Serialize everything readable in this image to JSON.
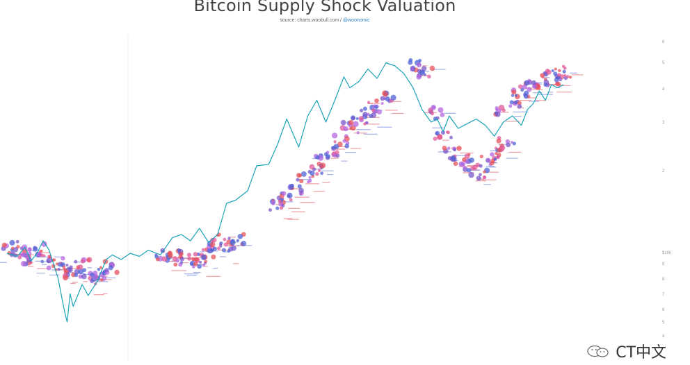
{
  "header": {
    "title": "Bitcoin Supply Shock Valuation",
    "source_prefix": "source: charts.woobull.com / ",
    "source_handle": "@woonomic"
  },
  "watermark": {
    "text": "CT中文",
    "icon": "wechat-icon"
  },
  "colors": {
    "price_line": "#1aa3b8",
    "dot_purple": "#7a57c9",
    "dot_pink": "#e05a9a",
    "dot_red": "#e8525a",
    "dot_violet": "#b366e0",
    "dot_blue": "#4f63d6",
    "text_red": "#e0505a",
    "text_blue": "#5a6fd8"
  },
  "chart_data": {
    "type": "line",
    "title": "Bitcoin Supply Shock Valuation",
    "xlabel": "",
    "ylabel": "",
    "y_scale": "log",
    "y_tick_labels": [
      "6",
      "5",
      "4",
      "3",
      "2",
      "$10k",
      "9",
      "8",
      "7",
      "6",
      "5",
      "4"
    ],
    "x_tick_labels": [],
    "grid": false,
    "legend": "none",
    "x_range": [
      0,
      100
    ],
    "y_range": [
      0,
      100
    ],
    "series": [
      {
        "kind": "line",
        "x": [
          0.0,
          1.7,
          3.0,
          4.0,
          5.0,
          6.0,
          7.0,
          8.5,
          9.5,
          10.0,
          10.5,
          11.0,
          12.5,
          13.5,
          15.0,
          16.5,
          17.5,
          19.0,
          20.5,
          22.0,
          23.5,
          25.5,
          27.5,
          29.0,
          30.5,
          32.0,
          33.5,
          35.0,
          36.5,
          38.0,
          40.0,
          41.5,
          43.5,
          45.0,
          46.5,
          48.5,
          50.0,
          51.5,
          53.0,
          54.5,
          56.0,
          57.0,
          58.5,
          60.0,
          61.5,
          63.0,
          64.5,
          66.0,
          67.5,
          69.0,
          70.5,
          71.5,
          72.5,
          73.5,
          75.0,
          76.5,
          78.0,
          79.5,
          81.0,
          82.5,
          84.0,
          85.5,
          86.5,
          87.5,
          88.5,
          89.5,
          90.5,
          91.5,
          92.5
        ],
        "y": [
          70.0,
          71.0,
          68.0,
          72.5,
          70.0,
          66.0,
          69.0,
          78.0,
          88.0,
          92.0,
          83.0,
          87.0,
          80.0,
          83.5,
          79.0,
          72.0,
          70.5,
          72.0,
          70.0,
          71.0,
          69.0,
          70.5,
          65.0,
          64.0,
          66.0,
          62.0,
          66.5,
          64.0,
          54.0,
          53.0,
          50.0,
          42.0,
          41.5,
          35.0,
          27.0,
          36.0,
          26.0,
          21.0,
          28.0,
          21.0,
          13.5,
          17.0,
          15.0,
          11.0,
          14.0,
          9.0,
          10.0,
          12.5,
          17.0,
          24.0,
          28.0,
          27.0,
          31.0,
          26.0,
          30.0,
          28.5,
          27.0,
          29.0,
          32.5,
          28.0,
          26.0,
          29.0,
          24.0,
          22.0,
          18.0,
          21.0,
          16.0,
          17.0,
          16.0
        ]
      }
    ],
    "dot_clusters": [
      {
        "x": [
          0.5,
          2.0,
          3.5,
          5.0,
          6.5,
          8.0,
          9.5,
          11.0,
          12.5,
          14.0,
          15.5,
          17.0
        ],
        "y": [
          68.0,
          70.0,
          71.5,
          69.0,
          72.0,
          73.0,
          75.0,
          76.5,
          74.0,
          77.0,
          78.0,
          74.5
        ]
      },
      {
        "x": [
          26.0,
          27.5,
          29.0,
          30.5,
          32.0,
          33.5,
          35.0,
          36.5,
          38.0
        ],
        "y": [
          71.0,
          70.5,
          72.0,
          71.5,
          72.5,
          70.0,
          66.0,
          68.0,
          65.5
        ]
      },
      {
        "x": [
          45.0,
          46.5,
          48.0,
          49.5,
          51.0,
          52.5,
          54.0,
          55.5,
          57.0,
          58.5,
          60.0,
          61.5,
          63.0
        ],
        "y": [
          55.0,
          52.0,
          50.0,
          46.0,
          43.0,
          40.0,
          37.0,
          34.0,
          30.0,
          27.0,
          25.0,
          23.0,
          20.0
        ]
      },
      {
        "x": [
          68.0,
          69.5,
          71.0,
          72.5,
          74.0,
          75.5,
          77.0,
          78.5,
          80.0,
          81.5,
          83.0
        ],
        "y": [
          10.0,
          12.0,
          25.0,
          33.0,
          38.0,
          40.0,
          42.0,
          44.0,
          41.0,
          38.0,
          35.0
        ]
      },
      {
        "x": [
          82.5,
          84.0,
          85.5,
          87.0,
          88.5,
          90.0,
          91.5,
          93.0
        ],
        "y": [
          24.0,
          21.0,
          18.0,
          16.0,
          15.0,
          13.0,
          14.0,
          12.0
        ]
      }
    ]
  }
}
